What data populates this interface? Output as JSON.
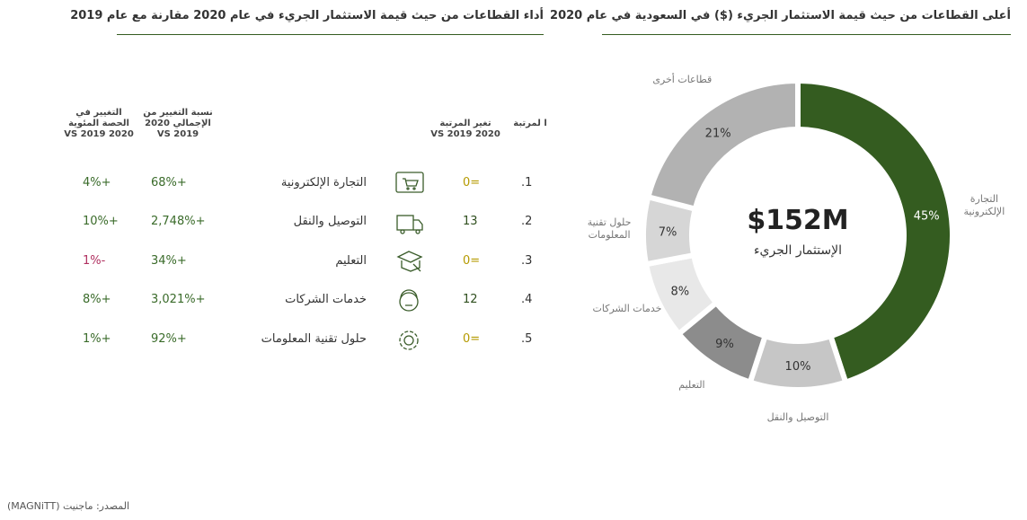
{
  "chart_data": {
    "type": "donut",
    "title": "أعلى القطاعات من حيث قيمة الاستثمار الجريء ($) في السعودية في عام 2020",
    "center_value": "$152M",
    "center_label": "الإستثمار الجريء",
    "categories": [
      "التجارة الإلكترونية",
      "التوصيل والنقل",
      "التعليم",
      "خدمات الشركات",
      "حلول تقنية المعلومات",
      "قطاعات أخرى"
    ],
    "values": [
      45,
      10,
      9,
      8,
      7,
      21
    ],
    "value_labels": [
      "45%",
      "10%",
      "9%",
      "8%",
      "7%",
      "21%"
    ],
    "colors": [
      "#345c20",
      "#c6c6c6",
      "#8c8c8c",
      "#e8e8e8",
      "#d6d6d6",
      "#b2b2b2"
    ]
  },
  "table": {
    "title": "أداء القطاعات من حيث قيمة الاستثمار الجريء في عام 2020 مقارنة مع عام 2019",
    "headers": [
      "ا لمرتبة",
      "تغير المرتبة 2020 VS 2019",
      "نسبة التغيير من الإجمالي 2020 VS 2019",
      "التغيير في الحصة المئوية 2020 VS 2019"
    ],
    "rows": [
      [
        "1.",
        "=0",
        "التجارة الإلكترونية",
        "+68%",
        "+4%"
      ],
      [
        "2.",
        "13",
        "التوصيل والنقل",
        "+2,748%",
        "+10%"
      ],
      [
        "3.",
        "=0",
        "التعليم",
        "+34%",
        "-1%"
      ],
      [
        "4.",
        "12",
        "خدمات الشركات",
        "+3,021%",
        "+8%"
      ],
      [
        "5.",
        "=0",
        "حلول تقنية المعلومات",
        "+92%",
        "+1%"
      ]
    ]
  },
  "source": "المصدر: ماجنيت (MAGNiTT)"
}
